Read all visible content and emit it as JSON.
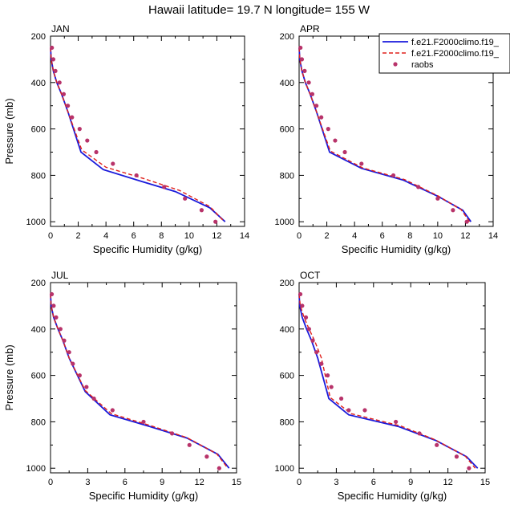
{
  "figure_title": "Hawaii  latitude= 19.7 N longitude= 155 W",
  "colors": {
    "model1": "#1a1adb",
    "model2": "#e0201b",
    "obs": "#b8336a",
    "axis": "#000000"
  },
  "legend": {
    "placement": "top-right of APR panel",
    "entries": [
      {
        "label": "f.e21.F2000climo.f19_",
        "style": "solid-line",
        "color": "#1a1adb"
      },
      {
        "label": "f.e21.F2000climo.f19_",
        "style": "dashed-line",
        "color": "#e0201b"
      },
      {
        "label": "raobs",
        "style": "dot",
        "color": "#b8336a"
      }
    ]
  },
  "chart_data": [
    {
      "type": "line",
      "panel_label": "JAN",
      "xlabel": "Specific Humidity (g/kg)",
      "ylabel": "Pressure (mb)",
      "xlim": [
        0,
        14
      ],
      "ylim": [
        200,
        1020
      ],
      "y_inverted": true,
      "xticks": [
        "0",
        "2",
        "4",
        "6",
        "8",
        "10",
        "12",
        "14"
      ],
      "yticks": [
        "200",
        "400",
        "600",
        "800",
        "1000"
      ],
      "series": [
        {
          "style": "solid",
          "x": [
            0.0,
            0.05,
            0.2,
            0.45,
            0.8,
            1.25,
            2.2,
            3.8,
            6.5,
            9.0,
            11.5,
            12.6
          ],
          "y": [
            250,
            300,
            350,
            400,
            450,
            525,
            700,
            775,
            825,
            870,
            940,
            1000
          ]
        },
        {
          "style": "dashed",
          "x": [
            0.0,
            0.05,
            0.2,
            0.45,
            0.8,
            1.25,
            2.25,
            4.0,
            6.8,
            9.3,
            11.5,
            12.55
          ],
          "y": [
            250,
            300,
            350,
            400,
            450,
            525,
            690,
            765,
            815,
            865,
            935,
            1000
          ]
        },
        {
          "style": "points",
          "x": [
            0.1,
            0.2,
            0.35,
            0.65,
            0.95,
            1.25,
            1.55,
            2.1,
            2.65,
            3.3,
            4.5,
            6.2,
            8.2,
            9.7,
            10.9,
            11.9
          ],
          "y": [
            250,
            300,
            350,
            400,
            450,
            500,
            550,
            600,
            650,
            700,
            750,
            800,
            850,
            900,
            950,
            1000
          ]
        }
      ]
    },
    {
      "type": "line",
      "panel_label": "APR",
      "xlabel": "Specific Humidity (g/kg)",
      "ylabel": "",
      "xlim": [
        0,
        14
      ],
      "ylim": [
        200,
        1020
      ],
      "y_inverted": true,
      "xticks": [
        "0",
        "2",
        "4",
        "6",
        "8",
        "10",
        "12",
        "14"
      ],
      "yticks": [
        "200",
        "400",
        "600",
        "800",
        "1000"
      ],
      "series": [
        {
          "style": "solid",
          "x": [
            0.0,
            0.05,
            0.2,
            0.45,
            0.8,
            1.25,
            2.2,
            4.5,
            7.5,
            10.0,
            11.8,
            12.4
          ],
          "y": [
            250,
            300,
            350,
            400,
            450,
            525,
            700,
            770,
            820,
            890,
            950,
            1000
          ]
        },
        {
          "style": "dashed",
          "x": [
            0.0,
            0.05,
            0.2,
            0.45,
            0.8,
            1.25,
            2.25,
            4.6,
            7.6,
            10.0,
            11.7,
            12.3
          ],
          "y": [
            250,
            300,
            350,
            400,
            450,
            525,
            695,
            768,
            818,
            888,
            948,
            1000
          ]
        },
        {
          "style": "points",
          "x": [
            0.1,
            0.2,
            0.4,
            0.7,
            0.95,
            1.25,
            1.6,
            2.1,
            2.6,
            3.3,
            4.5,
            6.8,
            8.6,
            10.0,
            11.1,
            12.1
          ],
          "y": [
            250,
            300,
            350,
            400,
            450,
            500,
            550,
            600,
            650,
            700,
            750,
            800,
            850,
            900,
            950,
            1000
          ]
        }
      ]
    },
    {
      "type": "line",
      "panel_label": "JUL",
      "xlabel": "Specific Humidity (g/kg)",
      "ylabel": "Pressure (mb)",
      "xlim": [
        0,
        15
      ],
      "ylim": [
        200,
        1020
      ],
      "y_inverted": true,
      "xticks": [
        "0",
        "3",
        "6",
        "9",
        "12",
        "15"
      ],
      "yticks": [
        "200",
        "400",
        "600",
        "800",
        "1000"
      ],
      "series": [
        {
          "style": "solid",
          "x": [
            0.0,
            0.05,
            0.25,
            0.6,
            1.0,
            1.5,
            2.8,
            4.8,
            8.0,
            11.0,
            13.5,
            14.4
          ],
          "y": [
            250,
            300,
            350,
            400,
            450,
            525,
            670,
            770,
            820,
            870,
            940,
            1000
          ]
        },
        {
          "style": "dashed",
          "x": [
            0.0,
            0.05,
            0.25,
            0.6,
            1.0,
            1.5,
            2.8,
            4.9,
            8.0,
            11.0,
            13.4,
            14.3
          ],
          "y": [
            250,
            300,
            350,
            400,
            450,
            525,
            665,
            765,
            815,
            868,
            938,
            1000
          ]
        },
        {
          "style": "points",
          "x": [
            0.1,
            0.25,
            0.45,
            0.8,
            1.1,
            1.5,
            1.8,
            2.35,
            2.9,
            3.5,
            5.0,
            7.5,
            9.8,
            11.2,
            12.6,
            13.6
          ],
          "y": [
            250,
            300,
            350,
            400,
            450,
            500,
            550,
            600,
            650,
            700,
            750,
            800,
            850,
            900,
            950,
            1000
          ]
        }
      ]
    },
    {
      "type": "line",
      "panel_label": "OCT",
      "xlabel": "Specific Humidity (g/kg)",
      "ylabel": "",
      "xlim": [
        0,
        15
      ],
      "ylim": [
        200,
        1020
      ],
      "y_inverted": true,
      "xticks": [
        "0",
        "3",
        "6",
        "9",
        "12",
        "15"
      ],
      "yticks": [
        "200",
        "400",
        "600",
        "800",
        "1000"
      ],
      "series": [
        {
          "style": "solid",
          "x": [
            0.0,
            0.05,
            0.25,
            0.6,
            1.0,
            1.5,
            2.4,
            4.0,
            8.0,
            11.0,
            13.5,
            14.4
          ],
          "y": [
            250,
            300,
            350,
            400,
            450,
            525,
            700,
            770,
            820,
            880,
            950,
            1000
          ]
        },
        {
          "style": "dashed",
          "x": [
            0.0,
            0.1,
            0.4,
            0.8,
            1.25,
            1.8,
            2.5,
            4.2,
            8.2,
            11.0,
            13.4,
            14.2
          ],
          "y": [
            250,
            300,
            350,
            400,
            450,
            525,
            695,
            765,
            818,
            878,
            948,
            1000
          ]
        },
        {
          "style": "points",
          "x": [
            0.1,
            0.25,
            0.55,
            0.8,
            1.1,
            1.4,
            1.8,
            2.3,
            2.6,
            3.4,
            4.0,
            5.3,
            7.8,
            9.7,
            11.1,
            12.7,
            13.7
          ],
          "y": [
            250,
            300,
            350,
            400,
            450,
            500,
            550,
            600,
            650,
            700,
            750,
            750,
            800,
            850,
            900,
            950,
            1000
          ]
        }
      ]
    }
  ]
}
